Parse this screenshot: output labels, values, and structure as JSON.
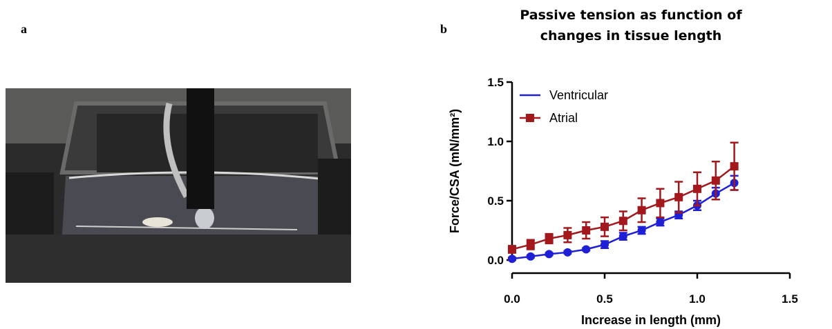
{
  "figure": {
    "panel_a_label": "a",
    "panel_b_label": "b"
  },
  "chart_data": {
    "type": "line",
    "title": [
      "Passive tension as function of",
      "changes in tissue length"
    ],
    "x_label": "Increase in length (mm)",
    "y_label": "Force/CSA (mN/mm²)",
    "x": [
      0,
      0.1,
      0.2,
      0.3,
      0.4,
      0.5,
      0.6,
      0.7,
      0.8,
      0.9,
      1.0,
      1.1,
      1.2
    ],
    "series": [
      {
        "name": "Ventricular",
        "color": "#1f1fd6",
        "marker": "circle",
        "legend_marker": false,
        "values": [
          0.01,
          0.03,
          0.05,
          0.065,
          0.09,
          0.13,
          0.2,
          0.25,
          0.32,
          0.38,
          0.46,
          0.56,
          0.65
        ],
        "errors": [
          0.01,
          0.01,
          0.01,
          0.01,
          0.01,
          0.03,
          0.03,
          0.03,
          0.03,
          0.03,
          0.04,
          0.05,
          0.06
        ]
      },
      {
        "name": "Atrial",
        "color": "#a3181c",
        "marker": "square",
        "legend_marker": true,
        "values": [
          0.09,
          0.13,
          0.18,
          0.21,
          0.25,
          0.28,
          0.33,
          0.42,
          0.48,
          0.53,
          0.6,
          0.67,
          0.79
        ],
        "errors": [
          0.03,
          0.04,
          0.04,
          0.06,
          0.07,
          0.08,
          0.08,
          0.1,
          0.12,
          0.13,
          0.14,
          0.16,
          0.2
        ]
      }
    ],
    "xlim": [
      0,
      1.5
    ],
    "ylim": [
      0,
      1.5
    ],
    "xticks": [
      {
        "value": 0,
        "label": "0.0"
      },
      0.5,
      {
        "value": 1,
        "label": "1.0"
      },
      1.5
    ],
    "yticks": [
      {
        "value": 0,
        "label": "0.0"
      },
      0.5,
      {
        "value": 1,
        "label": "1.0"
      },
      1.5
    ],
    "grid": false,
    "legend": "upper left"
  }
}
